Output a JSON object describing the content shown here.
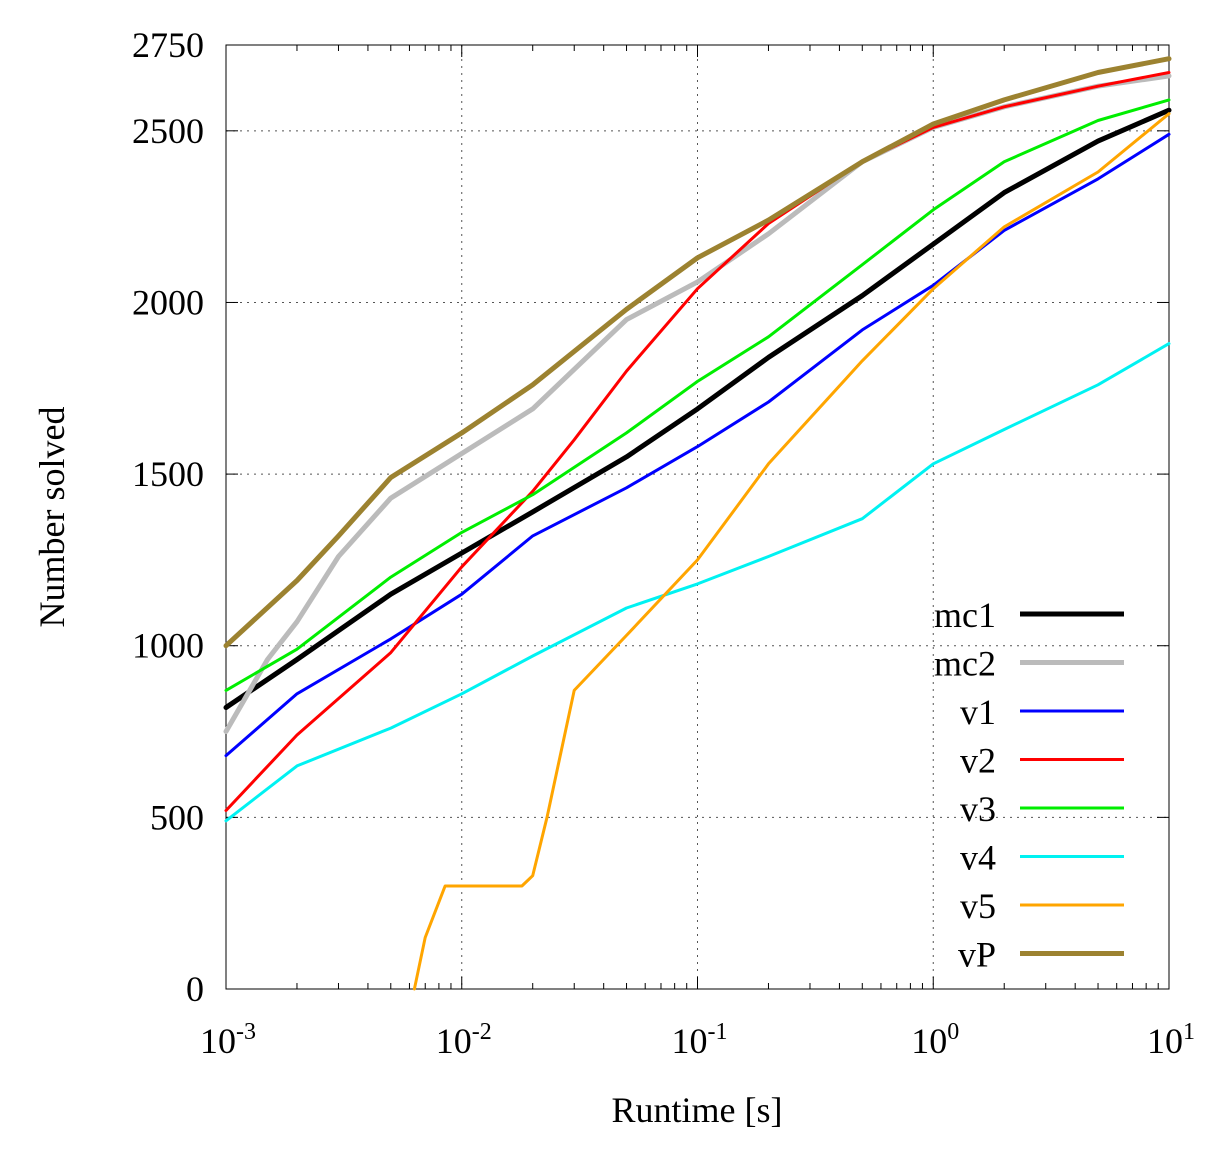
{
  "chart_data": {
    "type": "line",
    "title": "",
    "xlabel": "Runtime [s]",
    "ylabel": "Number solved",
    "xscale": "log",
    "xlim": [
      0.001,
      10
    ],
    "ylim": [
      0,
      2750
    ],
    "grid": true,
    "legend_position": "bottom-right",
    "x_ticks": [
      {
        "base": "10",
        "exp": "-3",
        "value": 0.001
      },
      {
        "base": "10",
        "exp": "-2",
        "value": 0.01
      },
      {
        "base": "10",
        "exp": "-1",
        "value": 0.1
      },
      {
        "base": "10",
        "exp": "0",
        "value": 1
      },
      {
        "base": "10",
        "exp": "1",
        "value": 10
      }
    ],
    "y_ticks": [
      {
        "label": "0",
        "value": 0
      },
      {
        "label": "500",
        "value": 500
      },
      {
        "label": "1000",
        "value": 1000
      },
      {
        "label": "1500",
        "value": 1500
      },
      {
        "label": "2000",
        "value": 2000
      },
      {
        "label": "2500",
        "value": 2500
      },
      {
        "label": "2750",
        "value": 2750
      }
    ],
    "series": [
      {
        "name": "mc1",
        "color": "#000000",
        "width": 5,
        "x": [
          0.001,
          0.002,
          0.005,
          0.01,
          0.02,
          0.05,
          0.1,
          0.2,
          0.5,
          1,
          2,
          5,
          10
        ],
        "y": [
          820,
          960,
          1150,
          1270,
          1390,
          1550,
          1690,
          1840,
          2020,
          2170,
          2320,
          2470,
          2560
        ]
      },
      {
        "name": "mc2",
        "color": "#bbbbbb",
        "width": 5,
        "x": [
          0.001,
          0.0015,
          0.002,
          0.003,
          0.005,
          0.01,
          0.02,
          0.05,
          0.1,
          0.2,
          0.5,
          1,
          2,
          5,
          10
        ],
        "y": [
          750,
          960,
          1070,
          1260,
          1430,
          1560,
          1690,
          1950,
          2060,
          2200,
          2410,
          2510,
          2570,
          2630,
          2660
        ]
      },
      {
        "name": "v1",
        "color": "#0000ff",
        "width": 3,
        "x": [
          0.001,
          0.002,
          0.005,
          0.01,
          0.02,
          0.05,
          0.1,
          0.2,
          0.5,
          1,
          2,
          5,
          10
        ],
        "y": [
          680,
          860,
          1020,
          1150,
          1320,
          1460,
          1580,
          1710,
          1920,
          2050,
          2210,
          2360,
          2490
        ]
      },
      {
        "name": "v2",
        "color": "#ff0000",
        "width": 3,
        "x": [
          0.001,
          0.002,
          0.005,
          0.01,
          0.02,
          0.03,
          0.05,
          0.1,
          0.2,
          0.5,
          1,
          2,
          5,
          10
        ],
        "y": [
          520,
          740,
          980,
          1230,
          1450,
          1600,
          1800,
          2040,
          2230,
          2410,
          2510,
          2570,
          2630,
          2670
        ]
      },
      {
        "name": "v3",
        "color": "#00ee00",
        "width": 3,
        "x": [
          0.001,
          0.002,
          0.005,
          0.01,
          0.02,
          0.05,
          0.1,
          0.2,
          0.5,
          1,
          2,
          5,
          10
        ],
        "y": [
          870,
          990,
          1200,
          1330,
          1440,
          1620,
          1770,
          1900,
          2110,
          2270,
          2410,
          2530,
          2590
        ]
      },
      {
        "name": "v4",
        "color": "#00f2f2",
        "width": 3,
        "x": [
          0.001,
          0.002,
          0.005,
          0.01,
          0.02,
          0.05,
          0.1,
          0.2,
          0.5,
          1,
          2,
          5,
          10
        ],
        "y": [
          490,
          650,
          760,
          860,
          970,
          1110,
          1180,
          1260,
          1370,
          1530,
          1630,
          1760,
          1880
        ]
      },
      {
        "name": "v5",
        "color": "#ffa500",
        "width": 3,
        "x": [
          0.0063,
          0.007,
          0.0085,
          0.01,
          0.018,
          0.02,
          0.023,
          0.03,
          0.05,
          0.1,
          0.2,
          0.5,
          1,
          2,
          5,
          10
        ],
        "y": [
          0,
          150,
          300,
          300,
          300,
          330,
          500,
          870,
          1030,
          1250,
          1530,
          1830,
          2040,
          2220,
          2380,
          2550
        ]
      },
      {
        "name": "vP",
        "color": "#9c8230",
        "width": 5,
        "x": [
          0.001,
          0.002,
          0.003,
          0.005,
          0.01,
          0.02,
          0.05,
          0.1,
          0.2,
          0.5,
          1,
          2,
          5,
          10
        ],
        "y": [
          1000,
          1190,
          1320,
          1490,
          1620,
          1760,
          1980,
          2130,
          2240,
          2410,
          2520,
          2590,
          2670,
          2710
        ]
      }
    ]
  }
}
